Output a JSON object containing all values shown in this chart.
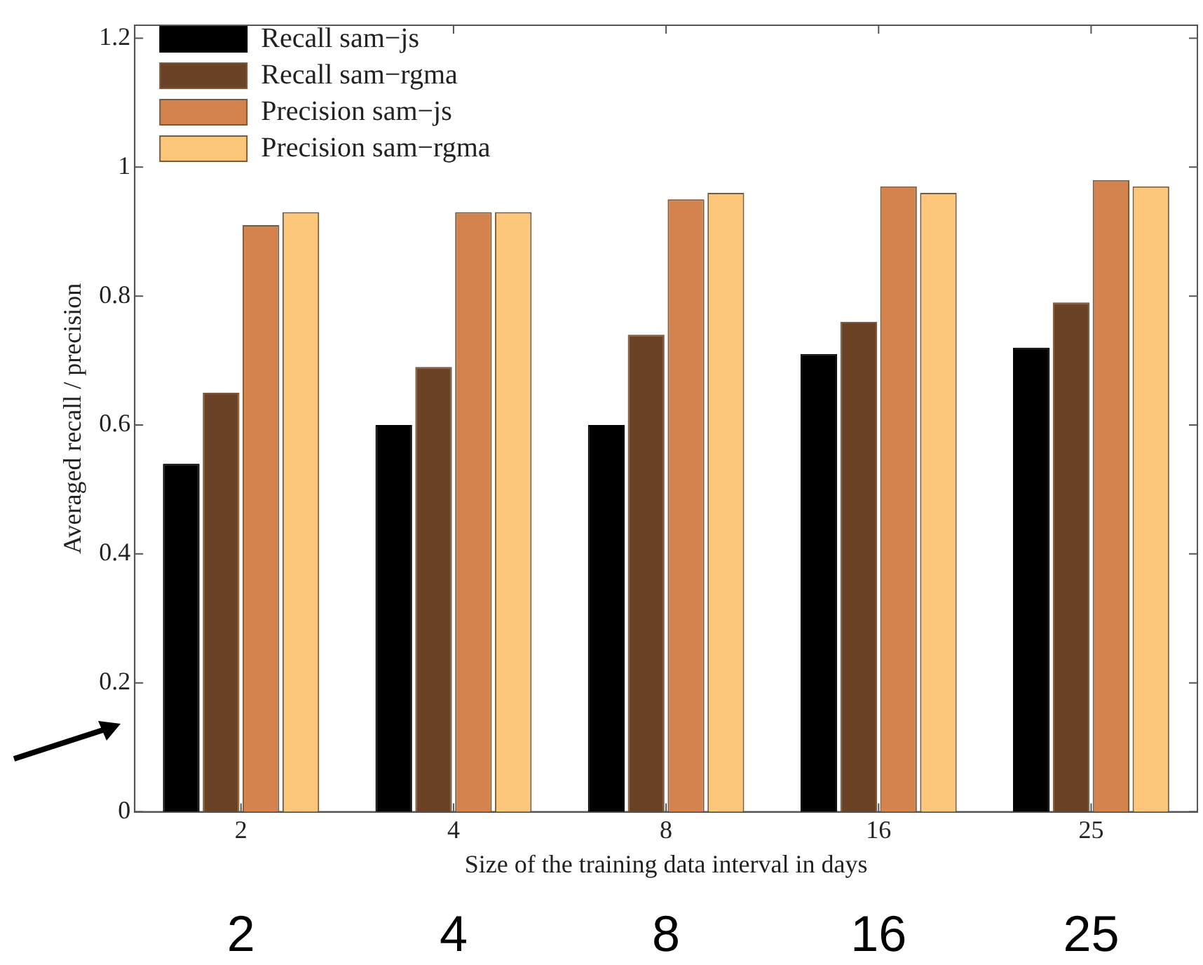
{
  "chart_data": {
    "type": "bar",
    "xlabel": "Size of the training data interval in days",
    "ylabel": "Averaged recall / precision",
    "categories": [
      "2",
      "4",
      "8",
      "16",
      "25"
    ],
    "series": [
      {
        "name": "Recall sam−js",
        "color": "#000000",
        "values": [
          0.54,
          0.6,
          0.6,
          0.71,
          0.72
        ]
      },
      {
        "name": "Recall sam−rgma",
        "color": "#6b4226",
        "values": [
          0.65,
          0.69,
          0.74,
          0.76,
          0.79
        ]
      },
      {
        "name": "Precision sam−js",
        "color": "#d4834f",
        "values": [
          0.91,
          0.93,
          0.95,
          0.97,
          0.98
        ]
      },
      {
        "name": "Precision sam−rgma",
        "color": "#fcc77a",
        "values": [
          0.93,
          0.93,
          0.96,
          0.96,
          0.97
        ]
      }
    ],
    "ylim": [
      0,
      1.22
    ],
    "yticks": [
      0,
      0.2,
      0.4,
      0.6,
      0.8,
      1,
      1.2
    ],
    "grid": false,
    "legend": "top left",
    "annotations": [
      "2",
      "4",
      "8",
      "16",
      "25"
    ]
  }
}
